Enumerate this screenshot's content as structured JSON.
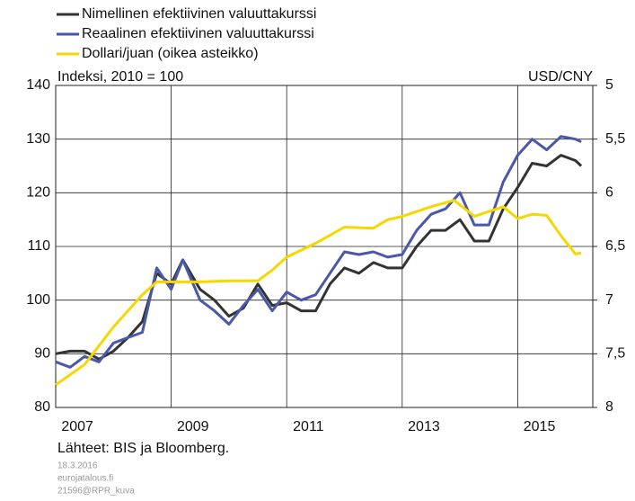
{
  "chart_data": {
    "type": "line",
    "y_label": "Indeksi, 2010 = 100",
    "y2_label": "USD/CNY",
    "notes": [
      "Lähteet: BIS ja Bloomberg.",
      "18.3.2016",
      "eurojatalous.fi",
      "21596@RPR_kuva"
    ],
    "xlim": [
      2007,
      2016.3
    ],
    "xticks": [
      2007,
      2009,
      2011,
      2013,
      2015
    ],
    "ylim": [
      80,
      140
    ],
    "yticks": [
      80,
      90,
      100,
      110,
      120,
      130,
      140
    ],
    "y2lim": [
      8,
      5
    ],
    "y2ticks": [
      8,
      {
        "value": 7.5,
        "label": "7,5"
      },
      7,
      {
        "value": 6.5,
        "label": "6,5"
      },
      6,
      {
        "value": 5.5,
        "label": "5,5"
      },
      5
    ],
    "grid": true,
    "series": [
      {
        "name": "Nimellinen efektiivinen valuuttakurssi",
        "color": "#333333",
        "x": [
          2007.0,
          2007.25,
          2007.5,
          2007.75,
          2008.0,
          2008.25,
          2008.5,
          2008.75,
          2009.0,
          2009.2,
          2009.5,
          2009.75,
          2010.0,
          2010.25,
          2010.5,
          2010.75,
          2011.0,
          2011.25,
          2011.5,
          2011.75,
          2012.0,
          2012.25,
          2012.5,
          2012.75,
          2013.0,
          2013.25,
          2013.5,
          2013.75,
          2014.0,
          2014.25,
          2014.5,
          2014.75,
          2015.0,
          2015.25,
          2015.5,
          2015.75,
          2016.0,
          2016.1
        ],
        "values": [
          90,
          90.5,
          90.5,
          89,
          90.5,
          93,
          96,
          105,
          103,
          107.5,
          102,
          100,
          97,
          98.5,
          103,
          99,
          99.5,
          98,
          98,
          103,
          106,
          105,
          107,
          106,
          106,
          110,
          113,
          113,
          115,
          111,
          111,
          117,
          121,
          125.5,
          125,
          127,
          126,
          125
        ]
      },
      {
        "name": "Reaalinen efektiivinen valuuttakurssi",
        "color": "#4a58a8",
        "x": [
          2007.0,
          2007.25,
          2007.5,
          2007.75,
          2008.0,
          2008.25,
          2008.5,
          2008.75,
          2009.0,
          2009.2,
          2009.5,
          2009.75,
          2010.0,
          2010.25,
          2010.5,
          2010.75,
          2011.0,
          2011.25,
          2011.5,
          2011.75,
          2012.0,
          2012.25,
          2012.5,
          2012.75,
          2013.0,
          2013.25,
          2013.5,
          2013.75,
          2014.0,
          2014.25,
          2014.5,
          2014.75,
          2015.0,
          2015.25,
          2015.5,
          2015.75,
          2016.0,
          2016.1
        ],
        "values": [
          88.5,
          87.5,
          89.5,
          88.5,
          92,
          93,
          94,
          106,
          102,
          107.5,
          100,
          98,
          95.5,
          99,
          102,
          98,
          101.5,
          100,
          101,
          105,
          109,
          108.5,
          109,
          108,
          108.5,
          113,
          116,
          117,
          120,
          114,
          114,
          122,
          127,
          130,
          128,
          130.5,
          130,
          129.5
        ]
      },
      {
        "name": "Dollari/juan (oikea asteikko)",
        "color": "#f5d800",
        "axis": "y2",
        "x": [
          2007.0,
          2007.5,
          2008.0,
          2008.5,
          2008.75,
          2009.5,
          2010.0,
          2010.5,
          2010.75,
          2011.0,
          2011.5,
          2012.0,
          2012.5,
          2012.75,
          2013.0,
          2013.5,
          2013.9,
          2014.25,
          2014.75,
          2015.0,
          2015.25,
          2015.5,
          2015.75,
          2016.0,
          2016.1
        ],
        "values": [
          7.79,
          7.6,
          7.25,
          6.95,
          6.83,
          6.83,
          6.82,
          6.82,
          6.72,
          6.6,
          6.47,
          6.32,
          6.33,
          6.25,
          6.22,
          6.13,
          6.07,
          6.22,
          6.13,
          6.24,
          6.2,
          6.21,
          6.4,
          6.57,
          6.56
        ]
      }
    ]
  }
}
